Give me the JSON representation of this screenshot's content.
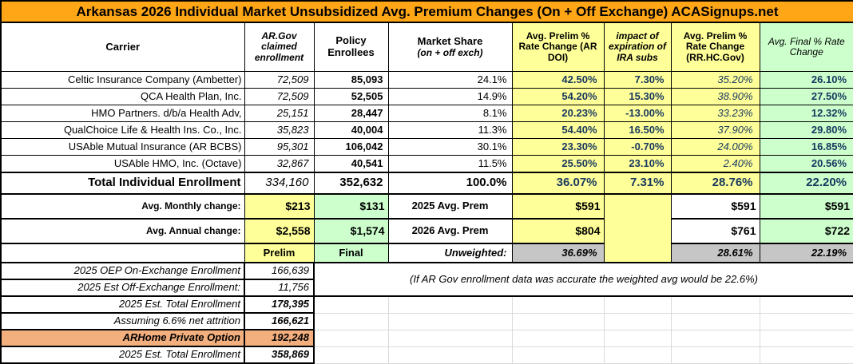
{
  "title": "Arkansas 2026 Individual Market Unsubsidized Avg. Premium Changes (On + Off Exchange) ACASignups.net",
  "columns": {
    "carrier": "Carrier",
    "ar_gov": "AR.Gov claimed enrollment",
    "policy": "Policy Enrollees",
    "market_share_main": "Market Share",
    "market_share_sub": "(on + off exch)",
    "prelim_doi": "Avg. Prelim % Rate Change (AR DOI)",
    "ira_impact": "impact of expiration of IRA subs",
    "prelim_rrhc": "Avg. Prelim % Rate Change (RR.HC.Gov)",
    "final_change": "Avg. Final % Rate Change"
  },
  "carriers": [
    {
      "name": "Celtic Insurance Company (Ambetter)",
      "ar_gov": "72,509",
      "policy": "85,093",
      "share": "24.1%",
      "doi": "42.50%",
      "ira": "7.30%",
      "rrhc": "35.20%",
      "final": "26.10%"
    },
    {
      "name": "QCA Health Plan, Inc.",
      "ar_gov": "72,509",
      "policy": "52,505",
      "share": "14.9%",
      "doi": "54.20%",
      "ira": "15.30%",
      "rrhc": "38.90%",
      "final": "27.50%"
    },
    {
      "name": "HMO Partners. d/b/a Health Adv,",
      "ar_gov": "25,151",
      "policy": "28,447",
      "share": "8.1%",
      "doi": "20.23%",
      "ira": "-13.00%",
      "rrhc": "33.23%",
      "final": "12.32%"
    },
    {
      "name": "QualChoice Life & Health Ins. Co., Inc.",
      "ar_gov": "35,823",
      "policy": "40,004",
      "share": "11.3%",
      "doi": "54.40%",
      "ira": "16.50%",
      "rrhc": "37.90%",
      "final": "29.80%"
    },
    {
      "name": "USAble Mutual Insurance (AR BCBS)",
      "ar_gov": "95,301",
      "policy": "106,042",
      "share": "30.1%",
      "doi": "23.30%",
      "ira": "-0.70%",
      "rrhc": "24.00%",
      "final": "16.85%"
    },
    {
      "name": "USAble HMO, Inc. (Octave)",
      "ar_gov": "32,867",
      "policy": "40,541",
      "share": "11.5%",
      "doi": "25.50%",
      "ira": "23.10%",
      "rrhc": "2.40%",
      "final": "20.56%"
    }
  ],
  "total": {
    "label": "Total Individual Enrollment",
    "ar_gov": "334,160",
    "policy": "352,632",
    "share": "100.0%",
    "doi": "36.07%",
    "ira": "7.31%",
    "rrhc": "28.76%",
    "final": "22.20%"
  },
  "monthly": {
    "label": "Avg. Monthly change:",
    "ar_gov": "$213",
    "policy": "$131",
    "prem_label": "2025 Avg. Prem",
    "doi": "$591",
    "rrhc": "$591",
    "final": "$591"
  },
  "annual": {
    "label": "Avg. Annual change:",
    "ar_gov": "$2,558",
    "policy": "$1,574",
    "prem_label": "2026 Avg. Prem",
    "doi": "$804",
    "rrhc": "$761",
    "final": "$722"
  },
  "summary": {
    "prelim": "Prelim",
    "final": "Final",
    "unweighted_label": "Unweighted:",
    "doi": "36.69%",
    "rrhc": "28.61%",
    "final_pct": "22.19%"
  },
  "note": "(If AR Gov enrollment data was accurate the weighted avg would be 22.6%)",
  "enrollment_rows": [
    {
      "label": "2025 OEP On-Exchange Enrollment",
      "value": "166,639"
    },
    {
      "label": "2025 Est Off-Exchange Enrollment:",
      "value": "11,756"
    },
    {
      "label": "2025 Est. Total Enrollment",
      "value": "178,395"
    },
    {
      "label": "Assuming 6.6% net attrition",
      "value": "166,621"
    },
    {
      "label": "ARHome Private Option",
      "value": "192,248"
    },
    {
      "label": "2025 Est. Total Enrollment",
      "value": "358,869"
    }
  ],
  "colors": {
    "title_bg": "#FFA617",
    "highlight_yellow": "#FFFF99",
    "highlight_green": "#CCFFCC",
    "highlight_gray": "#C6C6C6",
    "highlight_orange": "#F4AF7E",
    "percent_text": "#17375E"
  }
}
